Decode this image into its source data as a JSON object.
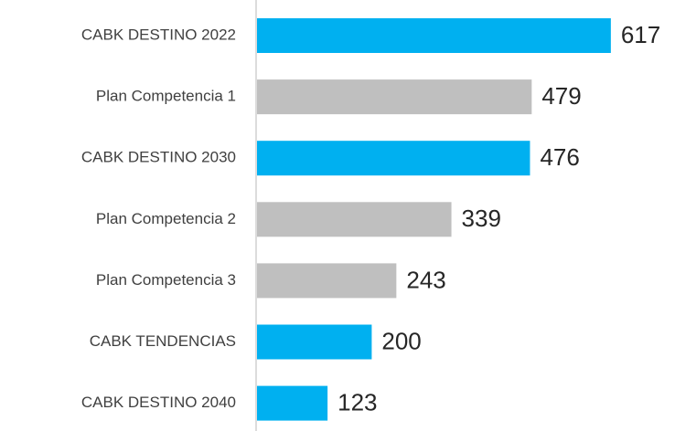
{
  "chart_data": {
    "type": "bar",
    "orientation": "horizontal",
    "categories": [
      "CABK DESTINO 2022",
      "Plan Competencia 1",
      "CABK DESTINO 2030",
      "Plan Competencia 2",
      "Plan Competencia 3",
      "CABK TENDENCIAS",
      "CABK DESTINO 2040"
    ],
    "values": [
      617,
      479,
      476,
      339,
      243,
      200,
      123
    ],
    "colors": [
      "#00b0f0",
      "#bfbfbf",
      "#00b0f0",
      "#bfbfbf",
      "#bfbfbf",
      "#00b0f0",
      "#00b0f0"
    ]
  }
}
